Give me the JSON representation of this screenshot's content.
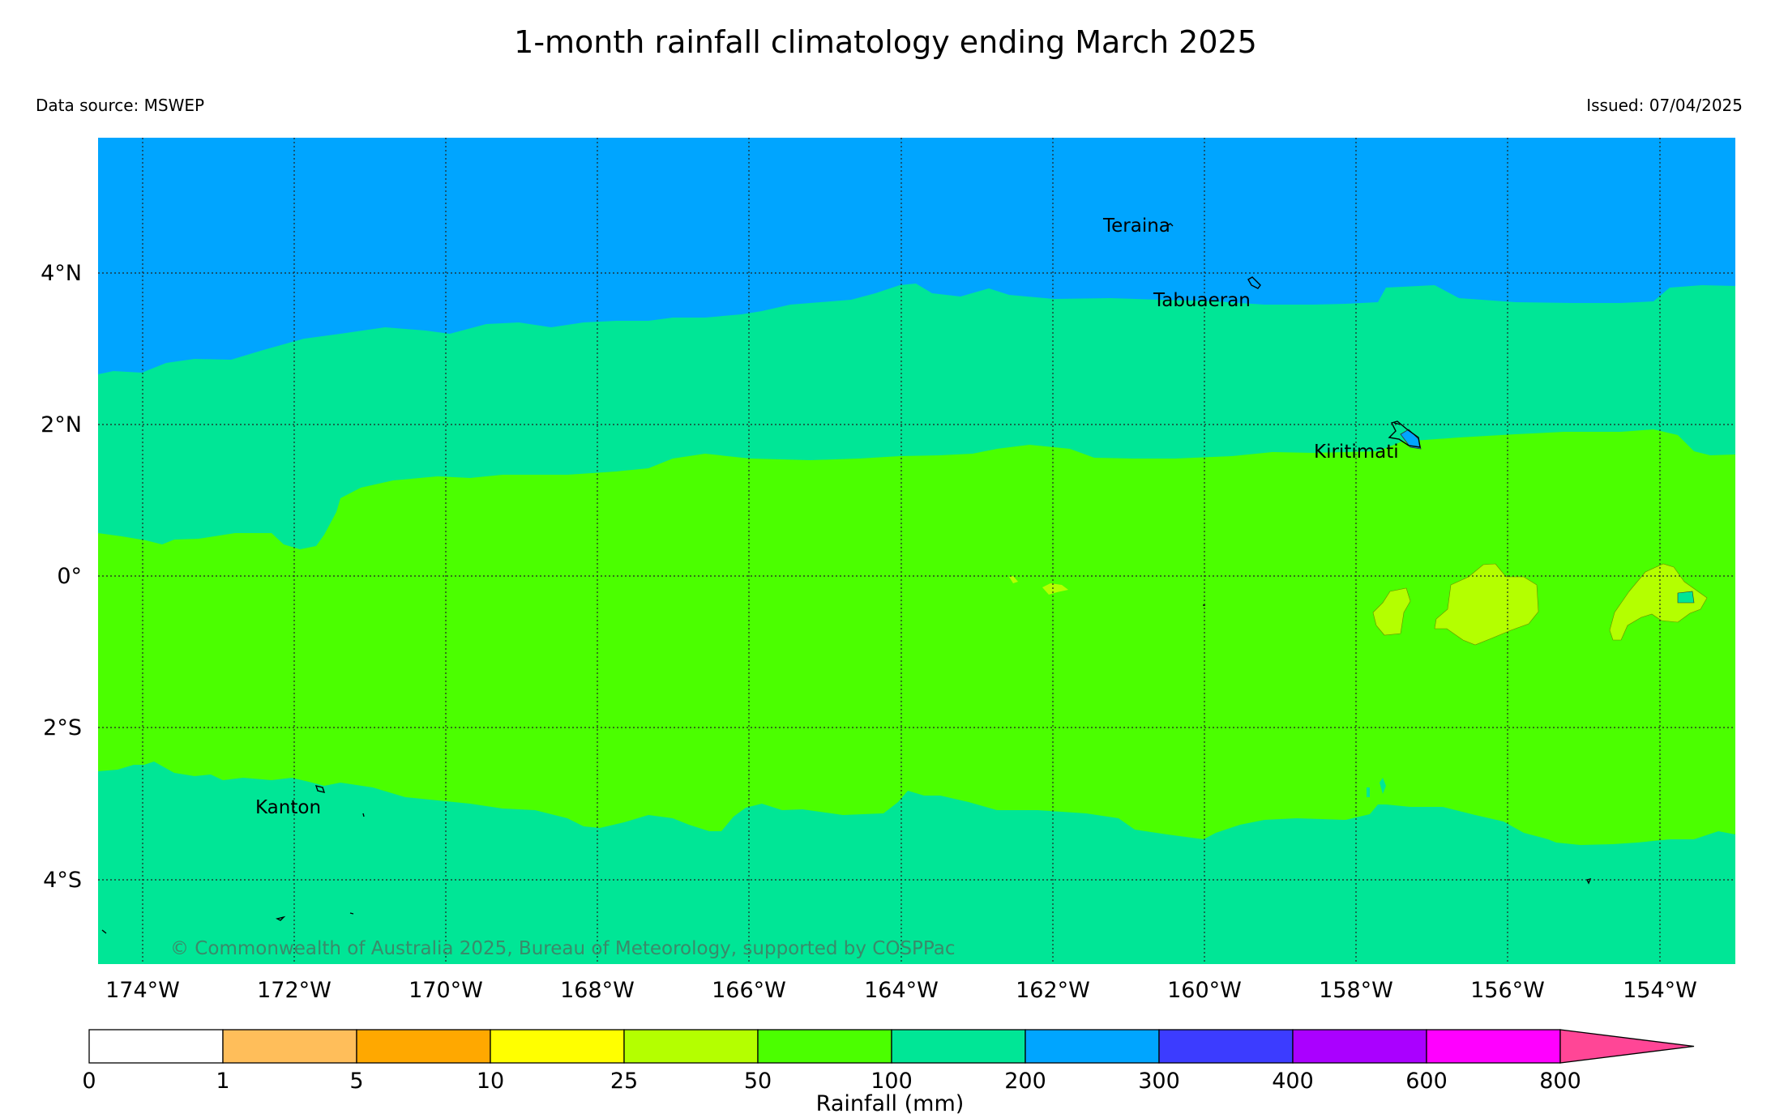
{
  "header": {
    "title": "1-month rainfall climatology ending March 2025",
    "data_source": "Data source: MSWEP",
    "issued": "Issued: 07/04/2025"
  },
  "map": {
    "lon_range": [
      -174.6,
      -153.0
    ],
    "lat_range": [
      -5.1,
      5.8
    ],
    "lon_ticks": [
      "174°W",
      "172°W",
      "170°W",
      "168°W",
      "166°W",
      "164°W",
      "162°W",
      "160°W",
      "158°W",
      "156°W",
      "154°W"
    ],
    "lat_ticks": [
      "4°N",
      "2°N",
      "0°",
      "2°S",
      "4°S"
    ],
    "places": [
      {
        "name": "Teraina"
      },
      {
        "name": "Tabuaeran"
      },
      {
        "name": "Kiritimati"
      },
      {
        "name": "Kanton"
      }
    ],
    "copyright": "© Commonwealth of Australia 2025, Bureau of Meteorology, supported by COSPPac"
  },
  "colorbar": {
    "label": "Rainfall (mm)",
    "ticks": [
      "0",
      "1",
      "5",
      "10",
      "25",
      "50",
      "100",
      "200",
      "300",
      "400",
      "600",
      "800"
    ],
    "colors": [
      "#ffffff",
      "#ffbe5a",
      "#ffa800",
      "#ffff00",
      "#b4ff00",
      "#4bff00",
      "#00e696",
      "#00a5ff",
      "#3c3cff",
      "#aa00ff",
      "#ff00ff",
      "#ff4696"
    ]
  }
}
